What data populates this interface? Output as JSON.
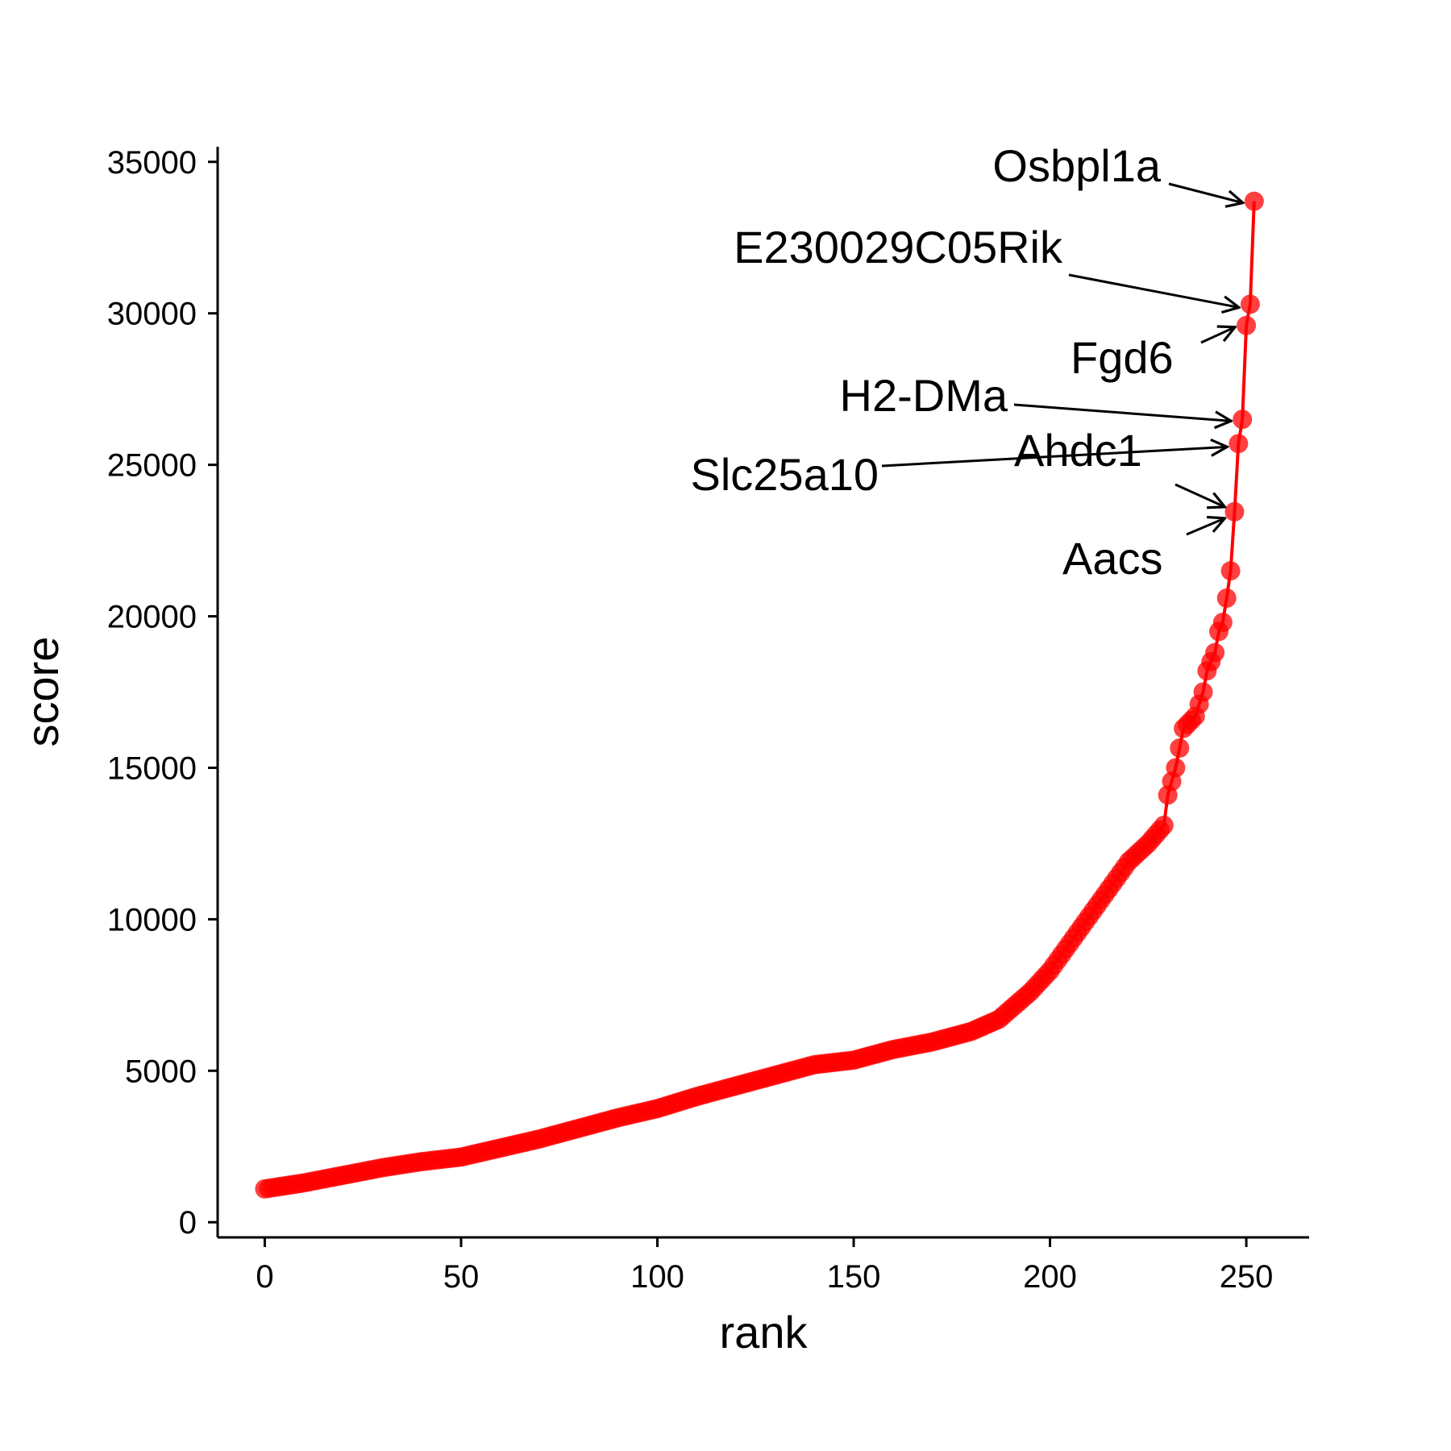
{
  "chart_data": {
    "type": "scatter",
    "title": "",
    "xlabel": "rank",
    "ylabel": "score",
    "xlim": [
      -12,
      266
    ],
    "ylim": [
      -500,
      35500
    ],
    "xticks": [
      0,
      50,
      100,
      150,
      200,
      250
    ],
    "yticks": [
      0,
      5000,
      10000,
      15000,
      20000,
      25000,
      30000,
      35000
    ],
    "series_color": "#ff0000",
    "line": true,
    "grid": false,
    "legend": "none",
    "curve_anchors": [
      [
        0,
        1100
      ],
      [
        10,
        1300
      ],
      [
        20,
        1550
      ],
      [
        30,
        1800
      ],
      [
        40,
        2000
      ],
      [
        50,
        2150
      ],
      [
        60,
        2450
      ],
      [
        70,
        2750
      ],
      [
        80,
        3100
      ],
      [
        90,
        3450
      ],
      [
        100,
        3750
      ],
      [
        110,
        4150
      ],
      [
        120,
        4500
      ],
      [
        130,
        4850
      ],
      [
        140,
        5200
      ],
      [
        150,
        5350
      ],
      [
        160,
        5700
      ],
      [
        170,
        5950
      ],
      [
        180,
        6300
      ],
      [
        187,
        6700
      ],
      [
        195,
        7600
      ],
      [
        200,
        8300
      ],
      [
        205,
        9200
      ],
      [
        210,
        10100
      ],
      [
        215,
        11000
      ],
      [
        220,
        11900
      ],
      [
        225,
        12500
      ],
      [
        229,
        13100
      ],
      [
        230,
        14100
      ],
      [
        232,
        15000
      ],
      [
        234,
        16300
      ],
      [
        237,
        16700
      ],
      [
        239,
        17500
      ],
      [
        240,
        18200
      ],
      [
        242,
        18800
      ],
      [
        243,
        19500
      ],
      [
        244,
        19800
      ],
      [
        245,
        20600
      ],
      [
        246,
        21500
      ],
      [
        247,
        23450
      ],
      [
        248,
        25700
      ],
      [
        249,
        26500
      ],
      [
        250,
        29600
      ],
      [
        251,
        30300
      ],
      [
        252,
        33700
      ]
    ],
    "n_points": 253,
    "annotations": [
      {
        "label": "Osbpl1a",
        "rank": 252,
        "score": 33700
      },
      {
        "label": "E230029C05Rik",
        "rank": 251,
        "score": 30300
      },
      {
        "label": "Fgd6",
        "rank": 250,
        "score": 29600
      },
      {
        "label": "H2-DMa",
        "rank": 249,
        "score": 26500
      },
      {
        "label": "Ahdc1",
        "rank": 247,
        "score": 23450
      },
      {
        "label": "Slc25a10",
        "rank": 248,
        "score": 25700
      },
      {
        "label": "Aacs",
        "rank": 247,
        "score": 23450
      }
    ]
  }
}
